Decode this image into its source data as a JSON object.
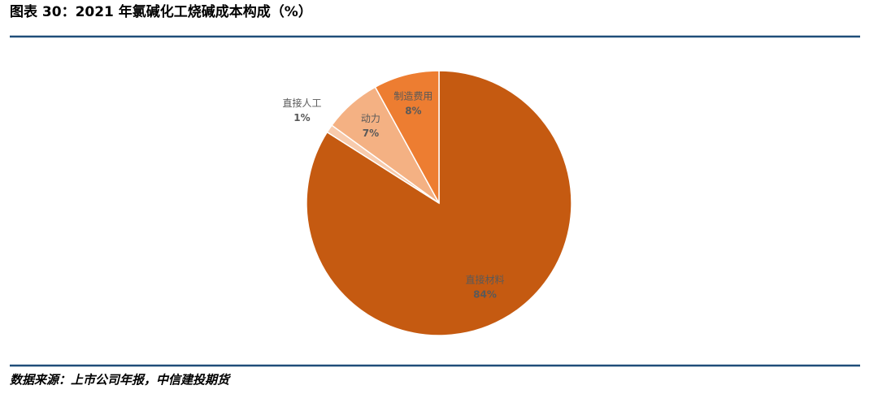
{
  "chart_data": {
    "type": "pie",
    "title": "图表 30：2021 年氯碱化工烧碱成本构成（%）",
    "categories": [
      "直接材料",
      "直接人工",
      "动力",
      "制造费用"
    ],
    "values": [
      84,
      1,
      7,
      8
    ],
    "value_labels": [
      "84%",
      "1%",
      "7%",
      "8%"
    ],
    "colors": [
      "#c55a11",
      "#f8cbad",
      "#f4b183",
      "#ed7d31"
    ]
  },
  "source": "数据来源：上市公司年报，中信建投期货"
}
